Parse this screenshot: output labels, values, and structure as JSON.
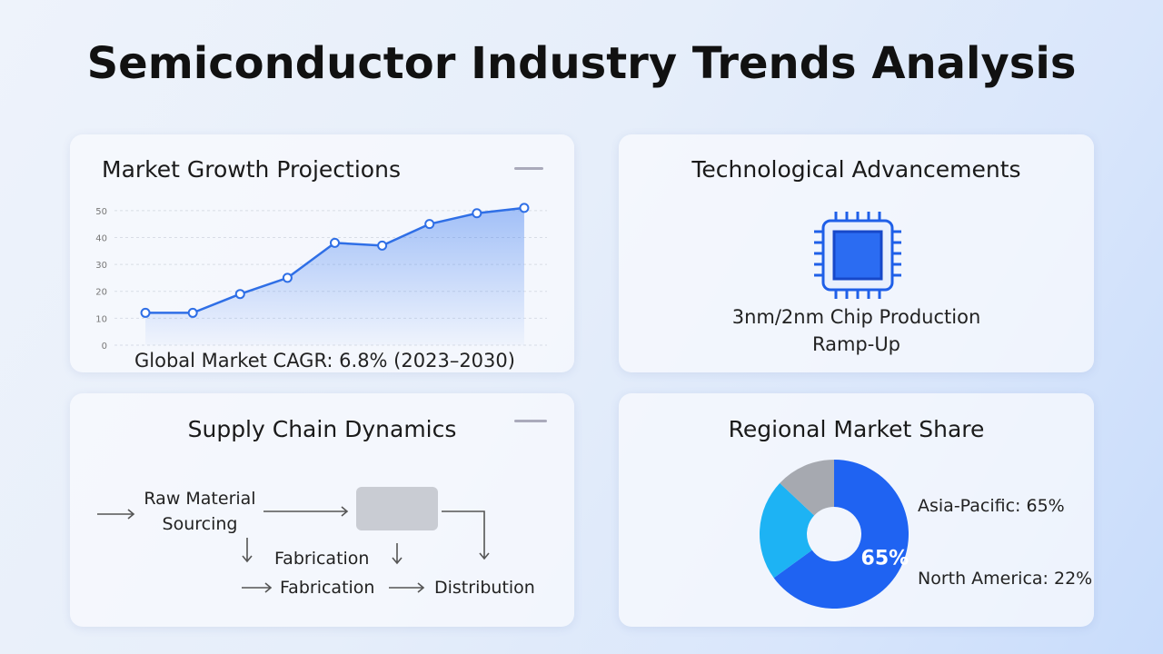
{
  "title": "Semiconductor Industry Trends Analysis",
  "chart_data": [
    {
      "type": "line",
      "title": "Market Growth Projections",
      "categories": [
        null,
        null,
        null,
        null,
        null,
        null,
        null,
        null,
        null
      ],
      "values": [
        12,
        12,
        19,
        25,
        38,
        37,
        45,
        49,
        51
      ],
      "color": "#2f6fe6",
      "ylim": [
        0,
        55
      ],
      "yticks": [
        0,
        10,
        20,
        30,
        40,
        50
      ],
      "grid": true,
      "caption": "Global Market CAGR: 6.8% (2023–2030)"
    },
    {
      "type": "pie",
      "title": "Regional Market Share",
      "categories": [
        "Asia-Pacific",
        "North America",
        null
      ],
      "values": [
        65,
        22,
        13
      ],
      "colors": [
        "#1f63f2",
        "#1db3f4",
        "#a6a9b0"
      ],
      "value_labels": [
        "65%",
        null,
        null
      ],
      "annotations": [
        "Asia-Pacific: 65%",
        "North America: 22%"
      ]
    }
  ],
  "technology": {
    "title": "Technological Advancements",
    "caption": "3nm/2nm Chip Production Ramp-Up"
  },
  "supply_chain": {
    "title": "Supply Chain Dynamics",
    "steps": [
      "Raw Material Sourcing",
      "Fabrication",
      "Fabrication",
      "Distribution"
    ]
  }
}
